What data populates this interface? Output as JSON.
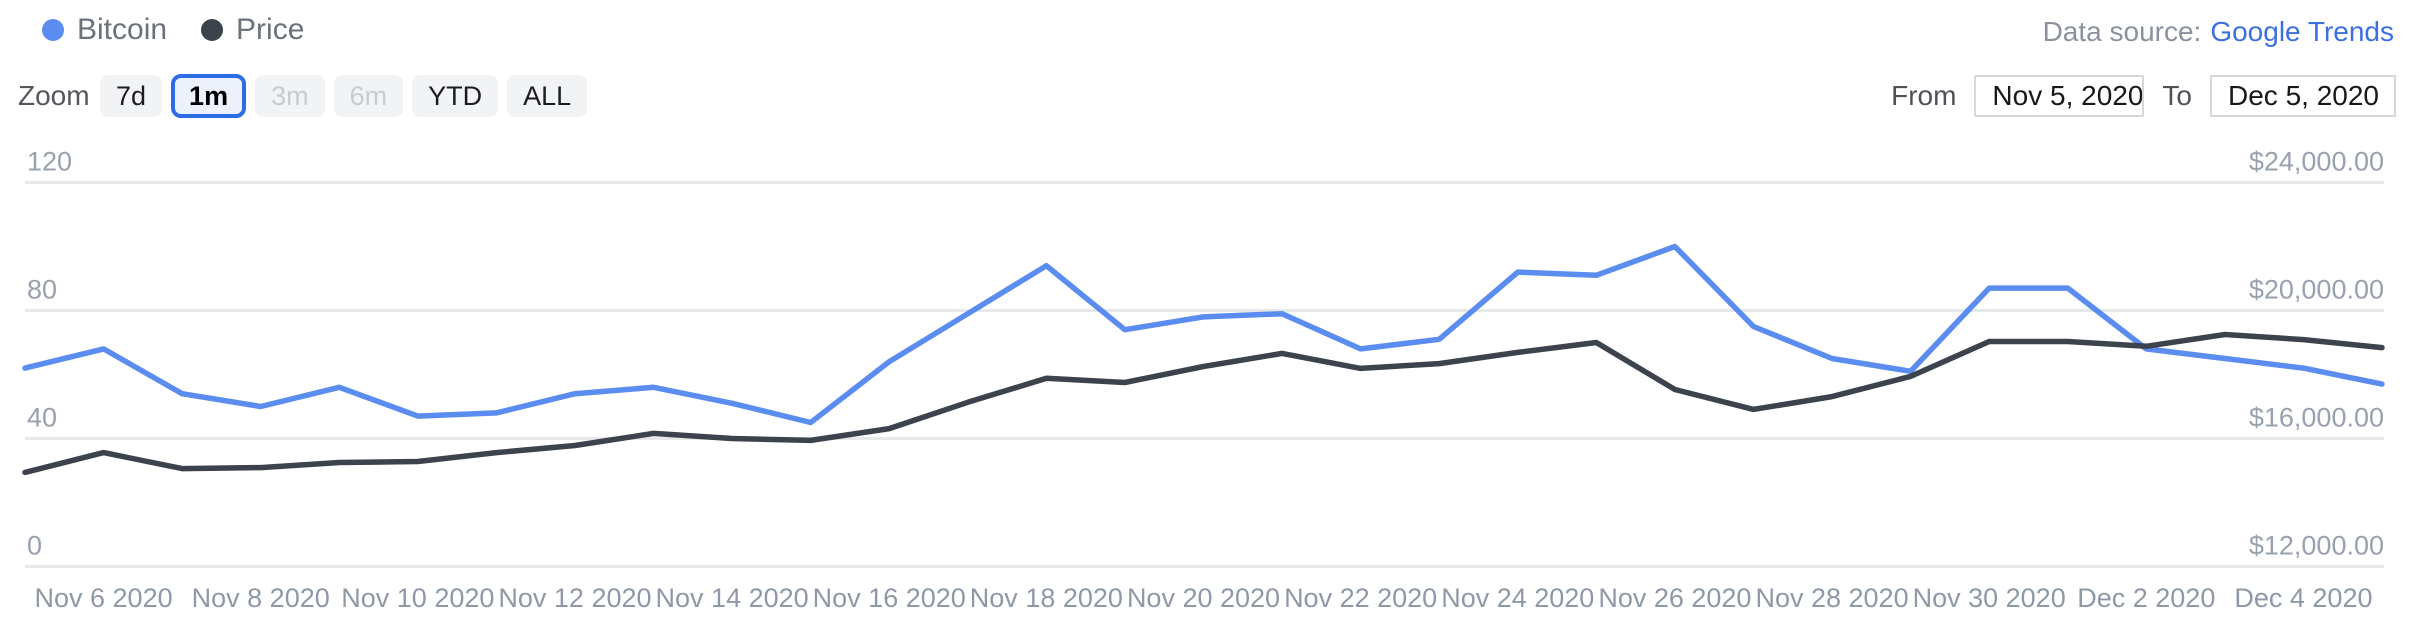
{
  "legend": {
    "items": [
      {
        "label": "Bitcoin",
        "color": "#5b8cf0"
      },
      {
        "label": "Price",
        "color": "#3d434c"
      }
    ]
  },
  "data_source": {
    "label": "Data source:",
    "link_label": "Google Trends",
    "link_color": "#3e6fe1"
  },
  "toolbar": {
    "zoom_label": "Zoom",
    "buttons": [
      {
        "label": "7d",
        "state": "normal"
      },
      {
        "label": "1m",
        "state": "selected"
      },
      {
        "label": "3m",
        "state": "disabled"
      },
      {
        "label": "6m",
        "state": "disabled"
      },
      {
        "label": "YTD",
        "state": "normal"
      },
      {
        "label": "ALL",
        "state": "normal"
      }
    ],
    "from_label": "From",
    "from_value": "Nov 5, 2020",
    "to_label": "To",
    "to_value": "Dec 5, 2020"
  },
  "chart_data": {
    "type": "line",
    "x": [
      "Nov 5 2020",
      "Nov 6 2020",
      "Nov 7 2020",
      "Nov 8 2020",
      "Nov 9 2020",
      "Nov 10 2020",
      "Nov 11 2020",
      "Nov 12 2020",
      "Nov 13 2020",
      "Nov 14 2020",
      "Nov 15 2020",
      "Nov 16 2020",
      "Nov 17 2020",
      "Nov 18 2020",
      "Nov 19 2020",
      "Nov 20 2020",
      "Nov 21 2020",
      "Nov 22 2020",
      "Nov 23 2020",
      "Nov 24 2020",
      "Nov 25 2020",
      "Nov 26 2020",
      "Nov 27 2020",
      "Nov 28 2020",
      "Nov 29 2020",
      "Nov 30 2020",
      "Dec 1 2020",
      "Dec 2 2020",
      "Dec 3 2020",
      "Dec 4 2020",
      "Dec 5 2020"
    ],
    "x_tick_indices": [
      1,
      3,
      5,
      7,
      9,
      11,
      13,
      15,
      17,
      19,
      21,
      23,
      25,
      27,
      29
    ],
    "x_tick_labels": [
      "Nov 6 2020",
      "Nov 8 2020",
      "Nov 10 2020",
      "Nov 12 2020",
      "Nov 14 2020",
      "Nov 16 2020",
      "Nov 18 2020",
      "Nov 20 2020",
      "Nov 22 2020",
      "Nov 24 2020",
      "Nov 26 2020",
      "Nov 28 2020",
      "Nov 30 2020",
      "Dec 2 2020",
      "Dec 4 2020"
    ],
    "series": [
      {
        "name": "Bitcoin",
        "axis": "left",
        "color": "#5b8cf0",
        "values": [
          62,
          68,
          54,
          50,
          56,
          47,
          48,
          54,
          56,
          51,
          45,
          64,
          79,
          94,
          74,
          78,
          79,
          68,
          71,
          92,
          91,
          100,
          75,
          65,
          61,
          87,
          87,
          68,
          65,
          62,
          57
        ]
      },
      {
        "name": "Price",
        "axis": "right",
        "color": "#3d434c",
        "values": [
          14940,
          15560,
          15060,
          15090,
          15250,
          15280,
          15560,
          15780,
          16160,
          16000,
          15940,
          16310,
          17130,
          17880,
          17750,
          18250,
          18660,
          18190,
          18340,
          18690,
          19000,
          17530,
          16910,
          17310,
          17940,
          19030,
          19030,
          18880,
          19250,
          19090,
          18840
        ]
      }
    ],
    "left_axis": {
      "tick_labels": [
        "0",
        "40",
        "80",
        "120"
      ],
      "tick_values": [
        0,
        40,
        80,
        120
      ],
      "range": [
        0,
        120
      ]
    },
    "right_axis": {
      "tick_labels": [
        "$12,000.00",
        "$16,000.00",
        "$20,000.00",
        "$24,000.00"
      ],
      "tick_values": [
        12000,
        16000,
        20000,
        24000
      ],
      "range": [
        12000,
        24000
      ]
    },
    "grid": "horizontal",
    "legend_position": "top-left",
    "title": ""
  }
}
